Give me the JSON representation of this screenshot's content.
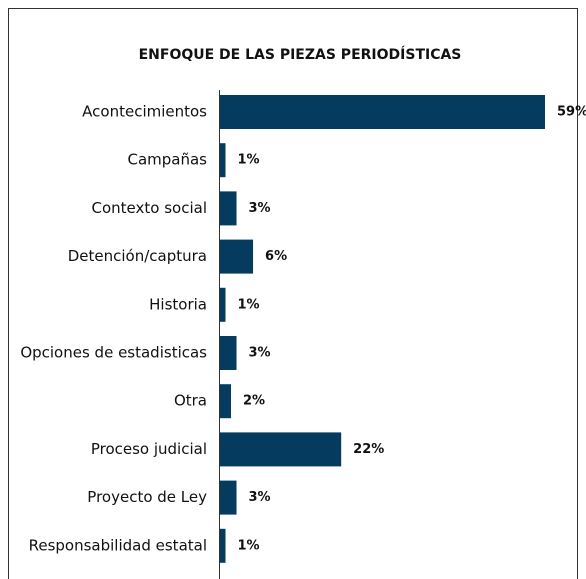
{
  "chart_data": {
    "type": "bar",
    "orientation": "horizontal",
    "title": "ENFOQUE DE LAS PIEZAS PERIODÍSTICAS",
    "categories": [
      "Acontecimientos",
      "Campañas",
      "Contexto social",
      "Detención/captura",
      "Historia",
      "Opciones de estadisticas",
      "Otra",
      "Proceso judicial",
      "Proyecto de Ley",
      "Responsabilidad estatal"
    ],
    "values": [
      59,
      1,
      3,
      6,
      1,
      3,
      2,
      22,
      3,
      1
    ],
    "value_labels": [
      "59%",
      "1%",
      "3%",
      "6%",
      "1%",
      "3%",
      "2%",
      "22%",
      "3%",
      "1%"
    ],
    "color": "#053b5e"
  }
}
